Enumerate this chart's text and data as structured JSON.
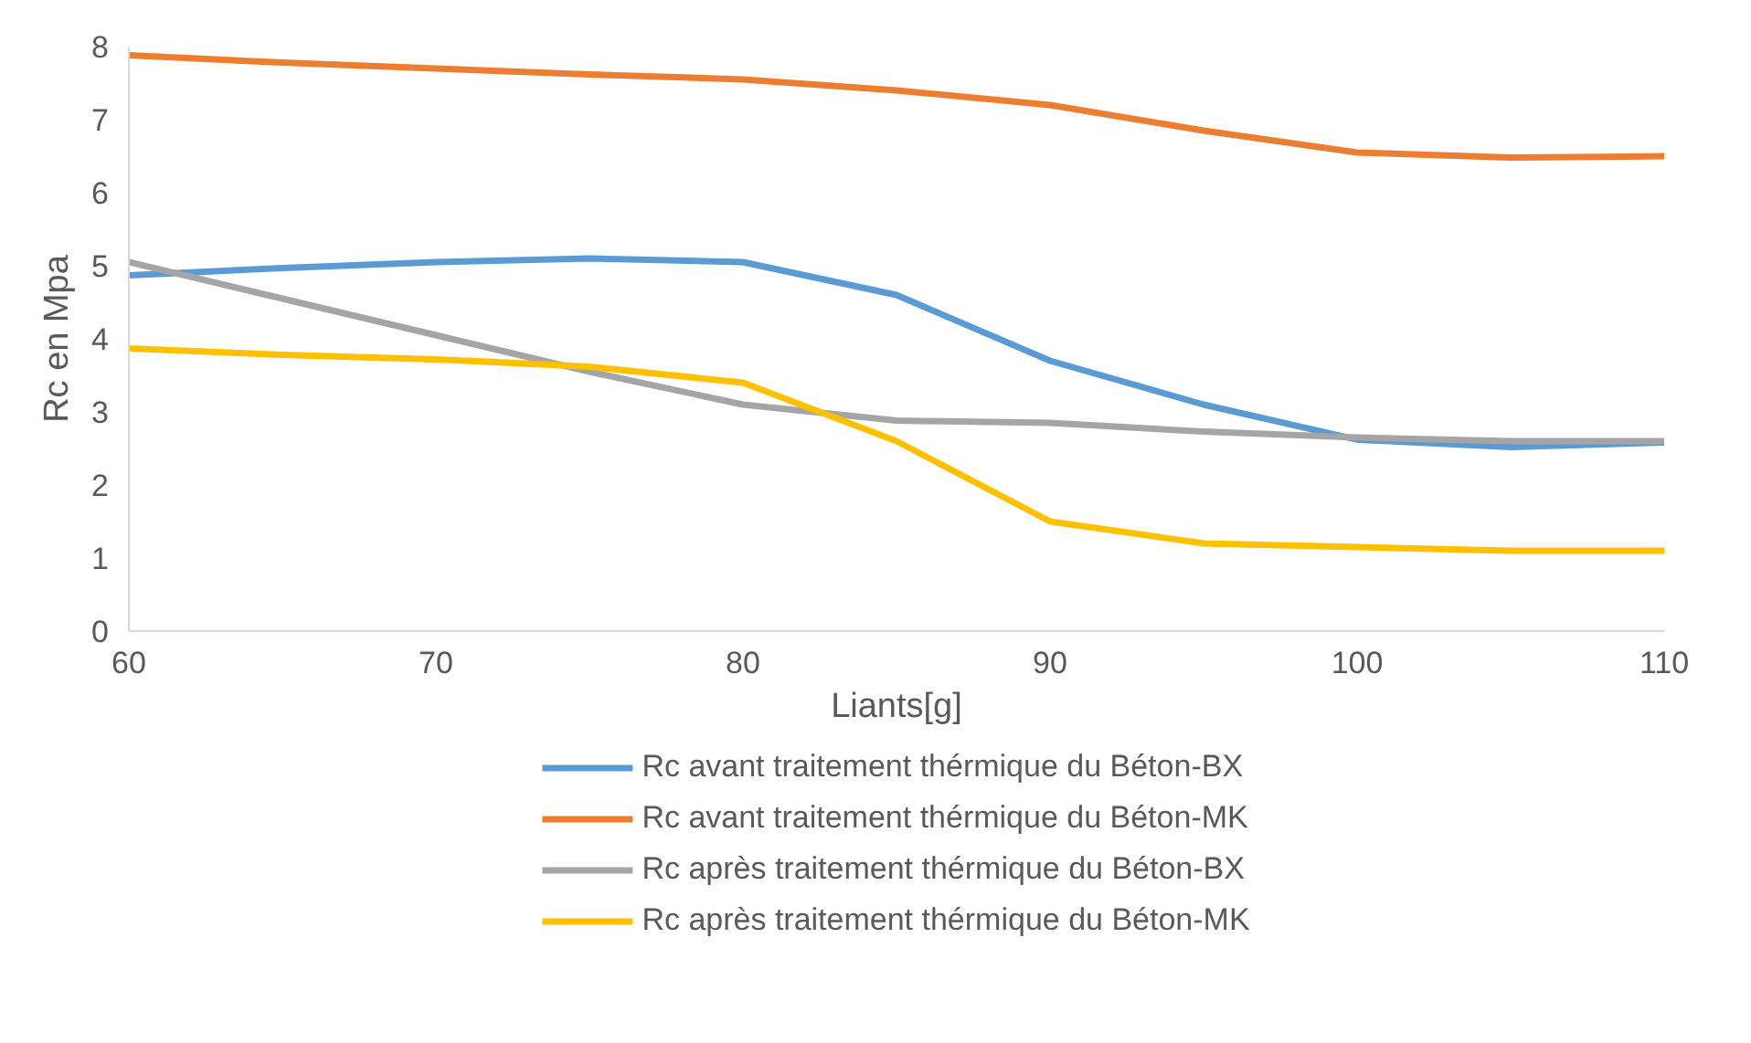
{
  "chart_data": {
    "type": "line",
    "xlabel": "Liants[g]",
    "ylabel": "Rc en Mpa",
    "x": [
      60,
      65,
      70,
      75,
      80,
      85,
      90,
      95,
      100,
      105,
      110
    ],
    "series": [
      {
        "name": "Rc avant traitement thérmique du Béton-BX",
        "color": "#5b9bd5",
        "values": [
          4.87,
          4.97,
          5.05,
          5.1,
          5.05,
          4.6,
          3.7,
          3.1,
          2.62,
          2.52,
          2.58
        ]
      },
      {
        "name": "Rc avant traitement thérmique du Béton-MK",
        "color": "#ed7d31",
        "values": [
          7.88,
          7.78,
          7.7,
          7.62,
          7.55,
          7.4,
          7.2,
          6.85,
          6.55,
          6.48,
          6.5
        ]
      },
      {
        "name": "Rc après traitement thérmique du Béton-BX",
        "color": "#a5a5a5",
        "values": [
          5.05,
          4.55,
          4.05,
          3.55,
          3.1,
          2.88,
          2.85,
          2.73,
          2.65,
          2.6,
          2.6
        ]
      },
      {
        "name": "Rc après traitement thérmique du Béton-MK",
        "color": "#ffc000",
        "values": [
          3.87,
          3.78,
          3.72,
          3.62,
          3.4,
          2.6,
          1.5,
          1.2,
          1.15,
          1.1,
          1.1
        ]
      }
    ],
    "xlim": [
      60,
      110
    ],
    "xticks": [
      60,
      70,
      80,
      90,
      100,
      110
    ],
    "ylim": [
      0,
      8
    ],
    "yticks": [
      0,
      1,
      2,
      3,
      4,
      5,
      6,
      7,
      8
    ],
    "grid": false,
    "legend": "bottom",
    "marker": "none",
    "line_style": "solid"
  }
}
